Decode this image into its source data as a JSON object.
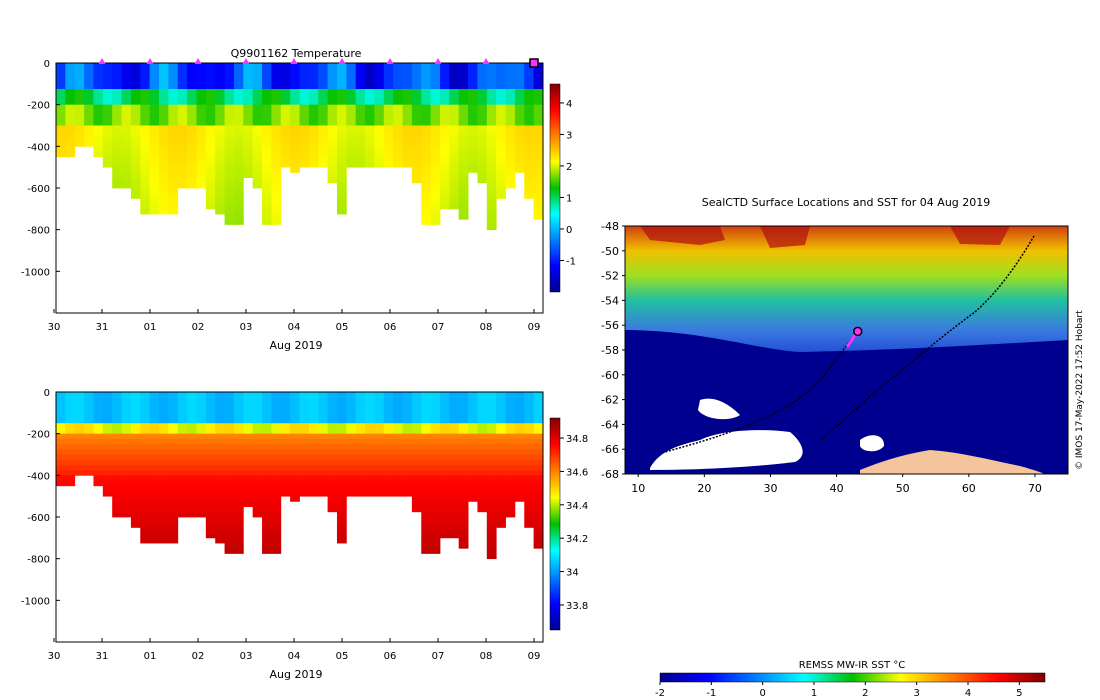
{
  "chart_data": [
    {
      "type": "heatmap",
      "title": "Q9901162  Temperature",
      "xlabel": "Aug 2019",
      "ylabel": "",
      "xticks": [
        "30",
        "31",
        "01",
        "02",
        "03",
        "04",
        "05",
        "06",
        "07",
        "08",
        "09"
      ],
      "yticks": [
        0,
        -200,
        -400,
        -600,
        -800,
        -1000
      ],
      "ylim": [
        -1200,
        0
      ],
      "colorbar": {
        "min": -2,
        "max": 4.6,
        "ticks": [
          -1,
          0,
          1,
          2,
          3,
          4
        ],
        "labels": [
          "-1",
          "0",
          "1",
          "2",
          "3",
          "4"
        ]
      },
      "profile_max_depths": [
        450,
        450,
        400,
        400,
        450,
        480,
        600,
        600,
        640,
        720,
        720,
        720,
        720,
        600,
        600,
        600,
        700,
        720,
        760,
        760,
        550,
        600,
        760,
        760,
        500,
        520,
        500,
        480,
        480,
        560,
        720,
        500,
        500,
        500,
        500,
        480,
        480,
        480,
        560,
        760,
        760,
        700,
        680,
        750,
        520,
        560,
        800,
        650,
        600,
        520,
        640,
        750
      ],
      "surface_markers": [
        "31",
        "01",
        "02",
        "03",
        "04",
        "05",
        "06",
        "07",
        "08"
      ],
      "latest_profile_marker": "09"
    },
    {
      "type": "heatmap",
      "title": "",
      "xlabel": "Aug 2019",
      "ylabel": "",
      "xticks": [
        "30",
        "31",
        "01",
        "02",
        "03",
        "04",
        "05",
        "06",
        "07",
        "08",
        "09"
      ],
      "yticks": [
        0,
        -200,
        -400,
        -600,
        -800,
        -1000
      ],
      "ylim": [
        -1200,
        0
      ],
      "colorbar": {
        "min": 33.65,
        "max": 34.92,
        "ticks": [
          33.8,
          34,
          34.2,
          34.4,
          34.6,
          34.8
        ],
        "labels": [
          "33.8",
          "34",
          "34.2",
          "34.4",
          "34.6",
          "34.8"
        ]
      },
      "profile_max_depths": [
        450,
        450,
        400,
        400,
        450,
        480,
        600,
        600,
        640,
        720,
        720,
        720,
        720,
        600,
        600,
        600,
        700,
        720,
        760,
        760,
        550,
        600,
        760,
        760,
        500,
        520,
        500,
        480,
        480,
        560,
        720,
        500,
        500,
        500,
        500,
        480,
        480,
        480,
        560,
        760,
        760,
        700,
        680,
        750,
        520,
        560,
        800,
        650,
        600,
        520,
        640,
        750
      ]
    },
    {
      "type": "map",
      "title": "SealCTD Surface Locations and SST for 04 Aug 2019",
      "xticks": [
        10,
        20,
        30,
        40,
        50,
        60,
        70
      ],
      "yticks": [
        -48,
        -50,
        -52,
        -54,
        -56,
        -58,
        -60,
        -62,
        -64,
        -66,
        -68
      ],
      "xlim": [
        8,
        75
      ],
      "ylim": [
        -68,
        -48
      ],
      "current_position": [
        43.2,
        -56.5
      ],
      "colorbar": {
        "label": "REMSS MW-IR SST °C",
        "min": -2,
        "max": 5.5,
        "ticks": [
          -2,
          -1,
          0,
          1,
          2,
          3,
          4,
          5
        ],
        "labels": [
          "-2",
          "-1",
          "0",
          "1",
          "2",
          "3",
          "4",
          "5"
        ]
      },
      "credit": "© IMOS 17-May-2022 17:52 Hobart"
    }
  ]
}
